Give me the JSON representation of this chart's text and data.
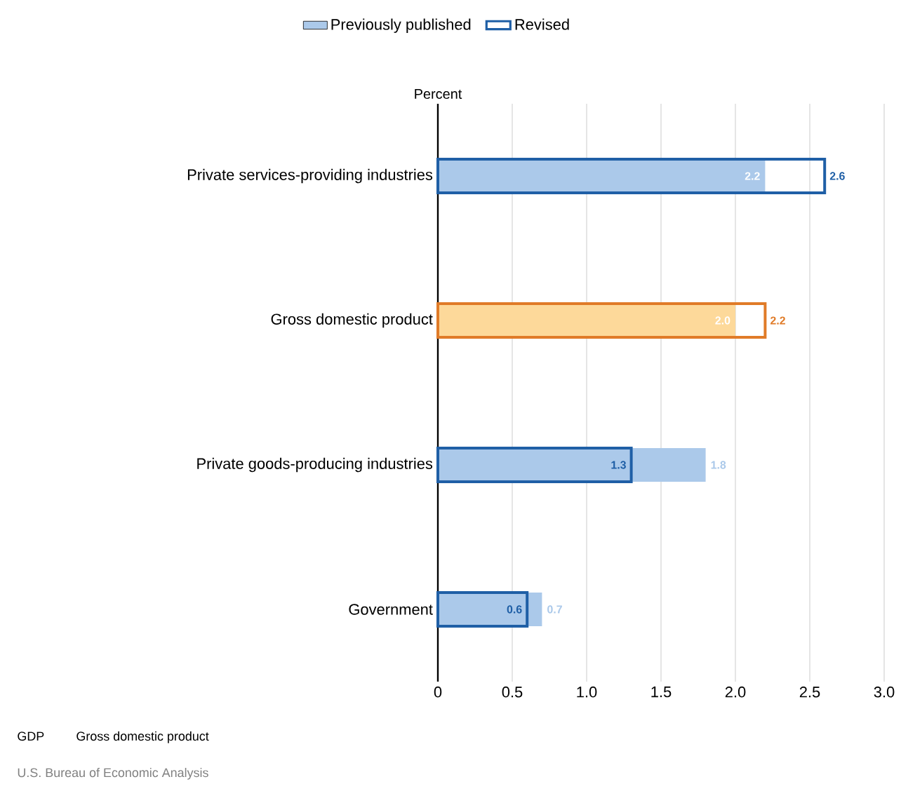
{
  "chart_data": {
    "type": "bar",
    "orientation": "horizontal",
    "xlabel": "Percent",
    "categories": [
      "Private services-providing industries",
      "Gross domestic product",
      "Private goods-producing industries",
      "Government"
    ],
    "series": [
      {
        "name": "Previously published",
        "color": "#abc9ea",
        "colors": [
          "#abc9ea",
          "#fdd99a",
          "#abc9ea",
          "#abc9ea"
        ],
        "values": [
          2.2,
          2.0,
          1.8,
          0.7
        ],
        "value_labels": [
          "2.2",
          "2.0",
          "1.8",
          "0.7"
        ]
      },
      {
        "name": "Revised",
        "color": "#1f5fa6",
        "colors": [
          "#1f5fa6",
          "#e07b28",
          "#1f5fa6",
          "#1f5fa6"
        ],
        "values": [
          2.6,
          2.2,
          1.3,
          0.6
        ],
        "value_labels": [
          "2.6",
          "2.2",
          "1.3",
          "0.6"
        ]
      }
    ],
    "xlim": [
      0,
      3.0
    ],
    "xticks": [
      0,
      0.5,
      {
        "value": 1,
        "label": "1.0"
      },
      1.5,
      {
        "value": 2,
        "label": "2.0"
      },
      2.5,
      {
        "value": 3,
        "label": "3.0"
      }
    ],
    "grid": "x",
    "legend": "top",
    "annotations": [
      "GDP",
      "Gross domestic product",
      "U.S. Bureau of Economic Analysis"
    ]
  }
}
